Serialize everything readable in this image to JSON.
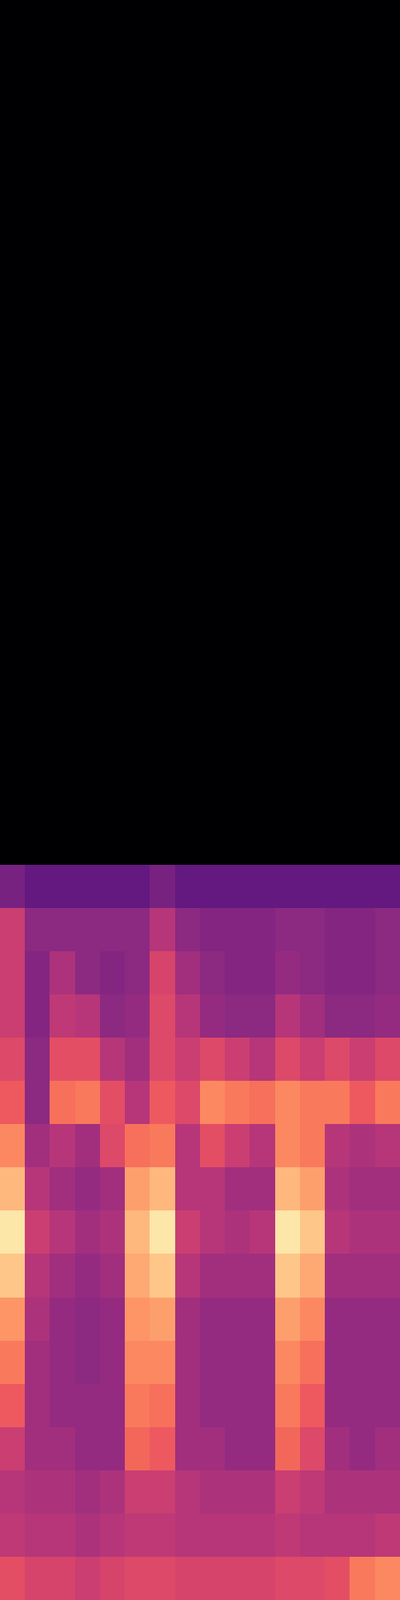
{
  "chart_data": {
    "type": "heatmap",
    "color": "magma",
    "tick_labels": false,
    "color_range": [
      0,
      1
    ],
    "cells": [
      [
        0,
        0,
        0,
        0,
        0,
        0,
        0,
        0,
        0,
        0,
        0,
        0,
        0,
        0,
        0,
        0
      ],
      [
        0,
        0,
        0,
        0,
        0,
        0,
        0,
        0,
        0,
        0,
        0,
        0,
        0,
        0,
        0,
        0
      ],
      [
        0,
        0,
        0,
        0,
        0,
        0,
        0,
        0,
        0,
        0,
        0,
        0,
        0,
        0,
        0,
        0
      ],
      [
        0,
        0,
        0,
        0,
        0,
        0,
        0,
        0,
        0,
        0,
        0,
        0,
        0,
        0,
        0,
        0
      ],
      [
        0,
        0,
        0,
        0,
        0,
        0,
        0,
        0,
        0,
        0,
        0,
        0,
        0,
        0,
        0,
        0
      ],
      [
        0,
        0,
        0,
        0,
        0,
        0,
        0,
        0,
        0,
        0,
        0,
        0,
        0,
        0,
        0,
        0
      ],
      [
        0,
        0,
        0,
        0,
        0,
        0,
        0,
        0,
        0,
        0,
        0,
        0,
        0,
        0,
        0,
        0
      ],
      [
        0,
        0,
        0,
        0,
        0,
        0,
        0,
        0,
        0,
        0,
        0,
        0,
        0,
        0,
        0,
        0
      ],
      [
        0,
        0,
        0,
        0,
        0,
        0,
        0,
        0,
        0,
        0,
        0,
        0,
        0,
        0,
        0,
        0
      ],
      [
        0,
        0,
        0,
        0,
        0,
        0,
        0,
        0,
        0,
        0,
        0,
        0,
        0,
        0,
        0,
        0
      ],
      [
        0,
        0,
        0,
        0,
        0,
        0,
        0,
        0,
        0,
        0,
        0,
        0,
        0,
        0,
        0,
        0
      ],
      [
        0,
        0,
        0,
        0,
        0,
        0,
        0,
        0,
        0,
        0,
        0,
        0,
        0,
        0,
        0,
        0
      ],
      [
        0,
        0,
        0,
        0,
        0,
        0,
        0,
        0,
        0,
        0,
        0,
        0,
        0,
        0,
        0,
        0
      ],
      [
        0,
        0,
        0,
        0,
        0,
        0,
        0,
        0,
        0,
        0,
        0,
        0,
        0,
        0,
        0,
        0
      ],
      [
        0,
        0,
        0,
        0,
        0,
        0,
        0,
        0,
        0,
        0,
        0,
        0,
        0,
        0,
        0,
        0
      ],
      [
        0,
        0,
        0,
        0,
        0,
        0,
        0,
        0,
        0,
        0,
        0,
        0,
        0,
        0,
        0,
        0
      ],
      [
        0,
        0,
        0,
        0,
        0,
        0,
        0,
        0,
        0,
        0,
        0,
        0,
        0,
        0,
        0,
        0
      ],
      [
        0,
        0,
        0,
        0,
        0,
        0,
        0,
        0,
        0,
        0,
        0,
        0,
        0,
        0,
        0,
        0
      ],
      [
        0,
        0,
        0,
        0,
        0,
        0,
        0,
        0,
        0,
        0,
        0,
        0,
        0,
        0,
        0,
        0
      ],
      [
        0,
        0,
        0,
        0,
        0,
        0,
        0,
        0,
        0,
        0,
        0,
        0,
        0,
        0,
        0,
        0
      ],
      [
        0.35,
        0.3,
        0.3,
        0.3,
        0.3,
        0.3,
        0.35,
        0.3,
        0.3,
        0.3,
        0.3,
        0.3,
        0.3,
        0.3,
        0.3,
        0.3
      ],
      [
        0.55,
        0.4,
        0.4,
        0.4,
        0.4,
        0.4,
        0.5,
        0.4,
        0.38,
        0.38,
        0.38,
        0.4,
        0.4,
        0.38,
        0.38,
        0.4
      ],
      [
        0.55,
        0.38,
        0.48,
        0.4,
        0.38,
        0.4,
        0.58,
        0.45,
        0.4,
        0.38,
        0.38,
        0.42,
        0.4,
        0.38,
        0.38,
        0.4
      ],
      [
        0.55,
        0.38,
        0.52,
        0.5,
        0.4,
        0.42,
        0.6,
        0.5,
        0.42,
        0.4,
        0.4,
        0.5,
        0.45,
        0.4,
        0.4,
        0.42
      ],
      [
        0.6,
        0.4,
        0.62,
        0.62,
        0.5,
        0.45,
        0.6,
        0.55,
        0.6,
        0.55,
        0.5,
        0.6,
        0.55,
        0.6,
        0.55,
        0.6
      ],
      [
        0.65,
        0.4,
        0.7,
        0.72,
        0.62,
        0.5,
        0.65,
        0.6,
        0.75,
        0.72,
        0.7,
        0.75,
        0.72,
        0.72,
        0.65,
        0.72
      ],
      [
        0.75,
        0.45,
        0.5,
        0.45,
        0.6,
        0.7,
        0.72,
        0.5,
        0.62,
        0.55,
        0.5,
        0.75,
        0.72,
        0.5,
        0.48,
        0.5
      ],
      [
        0.85,
        0.5,
        0.45,
        0.42,
        0.45,
        0.8,
        0.85,
        0.5,
        0.5,
        0.45,
        0.45,
        0.85,
        0.8,
        0.48,
        0.45,
        0.45
      ],
      [
        0.95,
        0.55,
        0.5,
        0.45,
        0.48,
        0.85,
        0.95,
        0.55,
        0.5,
        0.48,
        0.5,
        0.95,
        0.88,
        0.5,
        0.48,
        0.48
      ],
      [
        0.88,
        0.5,
        0.45,
        0.42,
        0.45,
        0.82,
        0.88,
        0.5,
        0.45,
        0.45,
        0.45,
        0.88,
        0.82,
        0.45,
        0.45,
        0.45
      ],
      [
        0.78,
        0.48,
        0.42,
        0.4,
        0.42,
        0.78,
        0.8,
        0.45,
        0.42,
        0.42,
        0.42,
        0.8,
        0.75,
        0.42,
        0.42,
        0.42
      ],
      [
        0.72,
        0.45,
        0.42,
        0.4,
        0.42,
        0.75,
        0.75,
        0.45,
        0.42,
        0.42,
        0.42,
        0.75,
        0.7,
        0.42,
        0.42,
        0.42
      ],
      [
        0.65,
        0.45,
        0.42,
        0.42,
        0.42,
        0.72,
        0.7,
        0.45,
        0.42,
        0.42,
        0.42,
        0.72,
        0.65,
        0.42,
        0.42,
        0.42
      ],
      [
        0.55,
        0.45,
        0.45,
        0.42,
        0.42,
        0.68,
        0.65,
        0.45,
        0.45,
        0.42,
        0.42,
        0.68,
        0.6,
        0.45,
        0.42,
        0.45
      ],
      [
        0.5,
        0.48,
        0.48,
        0.45,
        0.48,
        0.55,
        0.55,
        0.5,
        0.48,
        0.48,
        0.48,
        0.55,
        0.52,
        0.48,
        0.48,
        0.48
      ],
      [
        0.52,
        0.5,
        0.5,
        0.48,
        0.5,
        0.52,
        0.52,
        0.5,
        0.5,
        0.5,
        0.5,
        0.52,
        0.5,
        0.5,
        0.5,
        0.52
      ],
      [
        0.62,
        0.58,
        0.58,
        0.55,
        0.58,
        0.6,
        0.6,
        0.58,
        0.58,
        0.58,
        0.58,
        0.6,
        0.6,
        0.62,
        0.72,
        0.75
      ]
    ]
  }
}
